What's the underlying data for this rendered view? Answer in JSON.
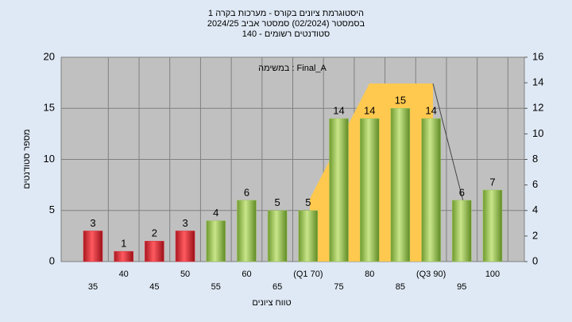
{
  "chart_data": {
    "type": "bar",
    "title": [
      "היסטוגרמת ציונים בקורס - מערכות בקרה 1",
      "בסמסטר  (02/2024)  סמסטר אביב 2024/25",
      "סטודנטים רשומים - 140"
    ],
    "annotation": "במשימה : Final_A",
    "x_label": "טווח ציונים",
    "y_label": "מספר סטודנטים",
    "categories": [
      "35",
      "40",
      "45",
      "50",
      "55",
      "60",
      "65",
      "(Q1 70)",
      "75",
      "80",
      "85",
      "(Q3 90)",
      "95",
      "100"
    ],
    "values": [
      3,
      1,
      2,
      3,
      4,
      6,
      5,
      5,
      14,
      14,
      15,
      14,
      6,
      7
    ],
    "colors": [
      "#e0303a",
      "#e0303a",
      "#e0303a",
      "#e0303a",
      "#9cc45a",
      "#9cc45a",
      "#9cc45a",
      "#9cc45a",
      "#9cc45a",
      "#9cc45a",
      "#9cc45a",
      "#9cc45a",
      "#9cc45a",
      "#9cc45a"
    ],
    "ylim": [
      0,
      20
    ],
    "yticks": [
      0,
      5,
      10,
      15,
      20
    ],
    "y2lim": [
      0,
      16
    ],
    "y2ticks": [
      0,
      2,
      4,
      6,
      8,
      10,
      12,
      14,
      16
    ],
    "grid": true
  }
}
